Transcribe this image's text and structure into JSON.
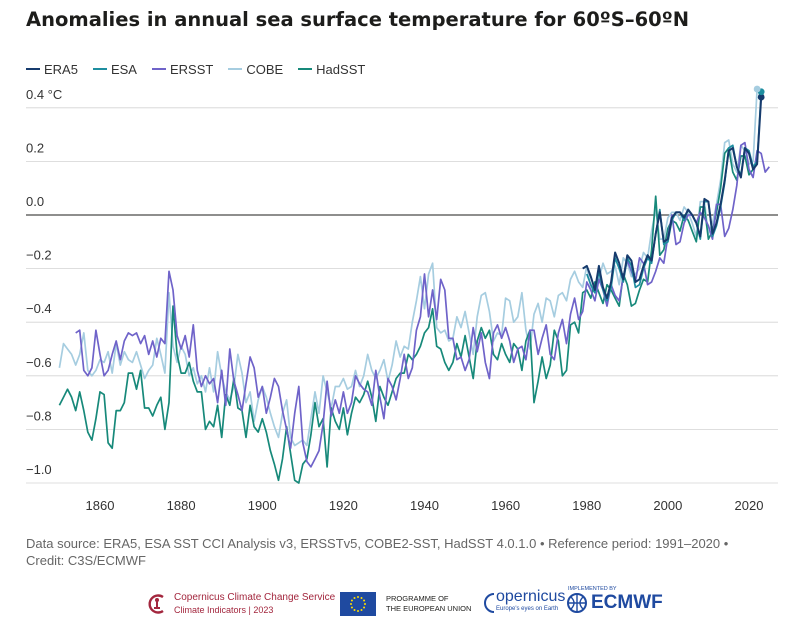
{
  "header": {
    "title": "Anomalies in annual sea surface temperature for 60ºS–60ºN"
  },
  "source": {
    "line1": "Data source: ERA5, ESA SST CCI Analysis v3, ERSSTv5, COBE2-SST, HadSST 4.0.1.0 • Reference period: 1991–2020 •",
    "line2": "Credit: C3S/ECMWF"
  },
  "footer": {
    "copernicus_cc_name": "Copernicus Climate Change Service",
    "copernicus_cc_sub": "Climate Indicators | 2023",
    "eu_text1": "PROGRAMME OF",
    "eu_text2": "THE EUROPEAN UNION",
    "copernicus_name": "opernicus",
    "copernicus_sub": "Europe's eyes on Earth",
    "ecmwf_tag": "IMPLEMENTED BY",
    "ecmwf_name": "ECMWF"
  },
  "chart_data": {
    "type": "line",
    "title": "Anomalies in annual sea surface temperature for 60ºS–60ºN",
    "xlabel": "",
    "ylabel": "",
    "xlim": [
      1847,
      2026
    ],
    "ylim": [
      -1.05,
      0.5
    ],
    "xticks": [
      1860,
      1880,
      1900,
      1920,
      1940,
      1960,
      1980,
      2000,
      2020
    ],
    "yticks": [
      {
        "value": 0.4,
        "label": "0.4 °C"
      },
      {
        "value": 0.2,
        "label": "0.2"
      },
      {
        "value": 0.0,
        "label": "0.0"
      },
      {
        "value": -0.2,
        "label": "−0.2"
      },
      {
        "value": -0.4,
        "label": "−0.4"
      },
      {
        "value": -0.6,
        "label": "−0.6"
      },
      {
        "value": -0.8,
        "label": "−0.8"
      },
      {
        "value": -1.0,
        "label": "−1.0"
      }
    ],
    "grid": "horizontal",
    "legend": "top-left",
    "series": [
      {
        "name": "ERA5",
        "color": "#163b6d",
        "start_year": 1979,
        "values": [
          -0.2,
          -0.19,
          -0.23,
          -0.28,
          -0.19,
          -0.27,
          -0.31,
          -0.25,
          -0.14,
          -0.18,
          -0.24,
          -0.15,
          -0.17,
          -0.25,
          -0.24,
          -0.19,
          -0.15,
          -0.17,
          -0.07,
          0.01,
          -0.1,
          -0.09,
          -0.01,
          0.01,
          0.01,
          -0.01,
          0.02,
          0.0,
          -0.03,
          -0.08,
          0.06,
          0.05,
          -0.07,
          -0.03,
          0.04,
          0.13,
          0.24,
          0.25,
          0.18,
          0.14,
          0.25,
          0.23,
          0.17,
          0.19,
          0.44
        ],
        "final_marker": true
      },
      {
        "name": "ESA",
        "color": "#1e8ea0",
        "start_year": 1980,
        "values": [
          -0.22,
          -0.26,
          -0.29,
          -0.21,
          -0.28,
          -0.32,
          -0.27,
          -0.16,
          -0.2,
          -0.25,
          -0.16,
          -0.19,
          -0.27,
          -0.26,
          -0.2,
          -0.16,
          -0.18,
          -0.07,
          0.02,
          -0.11,
          -0.1,
          -0.02,
          0.01,
          0.01,
          -0.02,
          0.02,
          0.0,
          -0.03,
          -0.09,
          0.05,
          0.05,
          -0.08,
          -0.04,
          0.03,
          0.12,
          0.25,
          0.26,
          0.18,
          0.15,
          0.25,
          0.24,
          0.18,
          0.2,
          0.46
        ],
        "final_marker": true
      },
      {
        "name": "ERSST",
        "color": "#6f63c9",
        "start_year": 1854,
        "values": [
          -0.44,
          -0.43,
          -0.58,
          -0.6,
          -0.57,
          -0.43,
          -0.52,
          -0.6,
          -0.58,
          -0.52,
          -0.47,
          -0.54,
          -0.47,
          -0.44,
          -0.45,
          -0.44,
          -0.48,
          -0.45,
          -0.52,
          -0.47,
          -0.53,
          -0.46,
          -0.48,
          -0.21,
          -0.28,
          -0.45,
          -0.5,
          -0.45,
          -0.53,
          -0.41,
          -0.58,
          -0.64,
          -0.6,
          -0.63,
          -0.61,
          -0.7,
          -0.58,
          -0.71,
          -0.5,
          -0.62,
          -0.67,
          -0.73,
          -0.63,
          -0.53,
          -0.57,
          -0.68,
          -0.64,
          -0.74,
          -0.68,
          -0.61,
          -0.64,
          -0.73,
          -0.8,
          -0.87,
          -0.74,
          -0.64,
          -0.85,
          -0.92,
          -0.94,
          -0.91,
          -0.88,
          -0.78,
          -0.62,
          -0.75,
          -0.69,
          -0.74,
          -0.66,
          -0.74,
          -0.7,
          -0.6,
          -0.63,
          -0.65,
          -0.66,
          -0.71,
          -0.58,
          -0.68,
          -0.76,
          -0.61,
          -0.64,
          -0.69,
          -0.61,
          -0.52,
          -0.61,
          -0.57,
          -0.43,
          -0.38,
          -0.22,
          -0.38,
          -0.28,
          -0.39,
          -0.24,
          -0.28,
          -0.46,
          -0.46,
          -0.54,
          -0.53,
          -0.58,
          -0.54,
          -0.42,
          -0.51,
          -0.44,
          -0.55,
          -0.61,
          -0.44,
          -0.41,
          -0.46,
          -0.42,
          -0.47,
          -0.55,
          -0.5,
          -0.49,
          -0.54,
          -0.43,
          -0.43,
          -0.52,
          -0.46,
          -0.41,
          -0.52,
          -0.54,
          -0.44,
          -0.39,
          -0.48,
          -0.37,
          -0.31,
          -0.39,
          -0.36,
          -0.25,
          -0.28,
          -0.32,
          -0.24,
          -0.28,
          -0.34,
          -0.26,
          -0.3,
          -0.32,
          -0.23,
          -0.17,
          -0.21,
          -0.25,
          -0.16,
          -0.18,
          -0.26,
          -0.25,
          -0.21,
          -0.16,
          -0.18,
          -0.08,
          0.0,
          -0.11,
          -0.1,
          -0.03,
          0.0,
          0.0,
          -0.03,
          0.01,
          -0.01,
          -0.04,
          -0.09,
          0.04,
          0.04,
          -0.08,
          -0.05,
          0.02,
          0.11,
          0.26,
          0.27,
          0.17,
          0.14,
          0.24,
          0.23,
          0.16,
          0.18
        ],
        "final_marker": false
      },
      {
        "name": "COBE",
        "color": "#a6cde0",
        "start_year": 1850,
        "values": [
          -0.57,
          -0.48,
          -0.5,
          -0.52,
          -0.56,
          -0.52,
          -0.44,
          -0.58,
          -0.6,
          -0.58,
          -0.54,
          -0.55,
          -0.51,
          -0.59,
          -0.48,
          -0.56,
          -0.51,
          -0.54,
          -0.55,
          -0.51,
          -0.56,
          -0.61,
          -0.58,
          -0.56,
          -0.46,
          -0.52,
          -0.59,
          -0.29,
          -0.49,
          -0.55,
          -0.49,
          -0.52,
          -0.6,
          -0.57,
          -0.63,
          -0.6,
          -0.66,
          -0.57,
          -0.66,
          -0.51,
          -0.6,
          -0.66,
          -0.69,
          -0.64,
          -0.52,
          -0.59,
          -0.7,
          -0.66,
          -0.77,
          -0.69,
          -0.64,
          -0.68,
          -0.74,
          -0.79,
          -0.83,
          -0.74,
          -0.69,
          -0.83,
          -0.86,
          -0.85,
          -0.84,
          -0.86,
          -0.76,
          -0.66,
          -0.74,
          -0.6,
          -0.66,
          -0.72,
          -0.64,
          -0.64,
          -0.61,
          -0.65,
          -0.64,
          -0.58,
          -0.64,
          -0.6,
          -0.52,
          -0.58,
          -0.61,
          -0.58,
          -0.54,
          -0.62,
          -0.56,
          -0.47,
          -0.53,
          -0.49,
          -0.5,
          -0.4,
          -0.32,
          -0.23,
          -0.35,
          -0.22,
          -0.18,
          -0.42,
          -0.44,
          -0.43,
          -0.47,
          -0.46,
          -0.38,
          -0.42,
          -0.36,
          -0.44,
          -0.52,
          -0.38,
          -0.3,
          -0.29,
          -0.36,
          -0.47,
          -0.44,
          -0.45,
          -0.31,
          -0.32,
          -0.4,
          -0.38,
          -0.29,
          -0.43,
          -0.5,
          -0.37,
          -0.33,
          -0.4,
          -0.31,
          -0.32,
          -0.38,
          -0.3,
          -0.29,
          -0.32,
          -0.24,
          -0.21,
          -0.25,
          -0.27,
          -0.19,
          -0.27,
          -0.29,
          -0.24,
          -0.18,
          -0.22,
          -0.21,
          -0.19,
          -0.26,
          -0.16,
          -0.18,
          -0.23,
          -0.22,
          -0.2,
          -0.14,
          -0.16,
          -0.06,
          0.02,
          -0.09,
          -0.09,
          -0.01,
          0.01,
          0.01,
          -0.02,
          0.03,
          0.01,
          -0.03,
          -0.08,
          0.05,
          0.05,
          -0.07,
          -0.03,
          0.04,
          0.13,
          0.27,
          0.28,
          0.19,
          0.16,
          0.26,
          0.24,
          0.19,
          0.2,
          0.47
        ],
        "final_marker": true
      },
      {
        "name": "HadSST",
        "color": "#17897a",
        "start_year": 1850,
        "values": [
          -0.71,
          -0.68,
          -0.65,
          -0.68,
          -0.73,
          -0.66,
          -0.73,
          -0.81,
          -0.84,
          -0.76,
          -0.66,
          -0.67,
          -0.85,
          -0.87,
          -0.73,
          -0.73,
          -0.7,
          -0.59,
          -0.59,
          -0.65,
          -0.58,
          -0.72,
          -0.72,
          -0.75,
          -0.71,
          -0.68,
          -0.8,
          -0.7,
          -0.34,
          -0.52,
          -0.59,
          -0.59,
          -0.55,
          -0.62,
          -0.66,
          -0.66,
          -0.8,
          -0.77,
          -0.79,
          -0.71,
          -0.83,
          -0.67,
          -0.71,
          -0.61,
          -0.72,
          -0.73,
          -0.83,
          -0.71,
          -0.79,
          -0.81,
          -0.76,
          -0.81,
          -0.88,
          -0.93,
          -0.99,
          -0.91,
          -0.79,
          -0.89,
          -0.99,
          -1.0,
          -0.93,
          -0.91,
          -0.82,
          -0.7,
          -0.79,
          -0.76,
          -0.94,
          -0.72,
          -0.77,
          -0.8,
          -0.72,
          -0.82,
          -0.74,
          -0.68,
          -0.7,
          -0.67,
          -0.62,
          -0.68,
          -0.77,
          -0.64,
          -0.68,
          -0.71,
          -0.66,
          -0.61,
          -0.59,
          -0.59,
          -0.52,
          -0.54,
          -0.52,
          -0.49,
          -0.44,
          -0.42,
          -0.35,
          -0.49,
          -0.5,
          -0.55,
          -0.58,
          -0.55,
          -0.48,
          -0.53,
          -0.45,
          -0.53,
          -0.61,
          -0.47,
          -0.42,
          -0.46,
          -0.43,
          -0.52,
          -0.54,
          -0.48,
          -0.52,
          -0.55,
          -0.48,
          -0.5,
          -0.58,
          -0.47,
          -0.43,
          -0.7,
          -0.62,
          -0.53,
          -0.61,
          -0.56,
          -0.43,
          -0.47,
          -0.6,
          -0.58,
          -0.41,
          -0.4,
          -0.44,
          -0.29,
          -0.28,
          -0.31,
          -0.25,
          -0.29,
          -0.33,
          -0.26,
          -0.28,
          -0.31,
          -0.34,
          -0.22,
          -0.26,
          -0.34,
          -0.33,
          -0.28,
          -0.24,
          -0.25,
          -0.13,
          0.07,
          -0.15,
          -0.13,
          -0.05,
          -0.02,
          -0.03,
          -0.06,
          0.0,
          -0.02,
          -0.06,
          -0.1,
          0.03,
          0.03,
          -0.09,
          -0.06,
          0.01,
          0.1,
          0.23,
          0.25,
          0.16,
          0.13,
          0.22,
          0.22,
          0.15,
          0.17
        ],
        "final_marker": false
      }
    ]
  }
}
